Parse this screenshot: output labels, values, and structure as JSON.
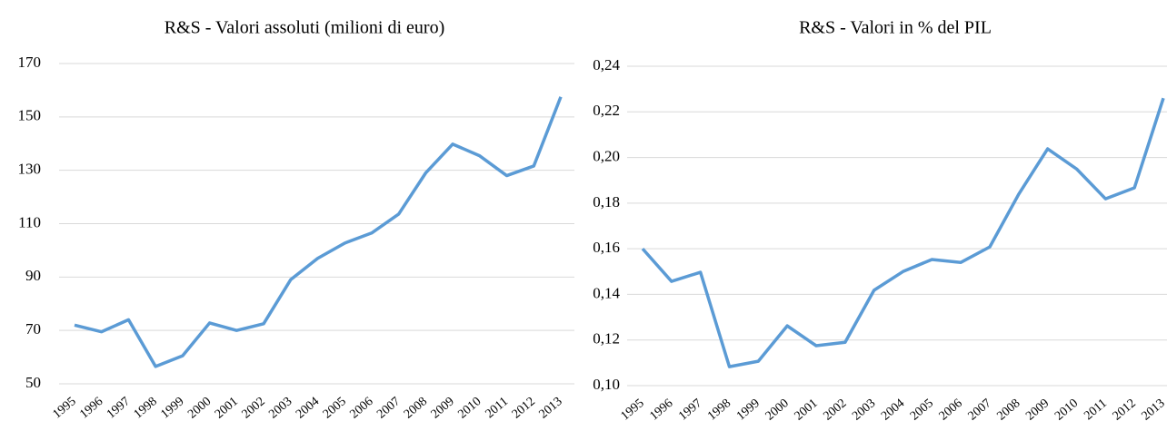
{
  "chart_data": [
    {
      "type": "line",
      "title": "R&S - Valori assoluti (milioni di euro)",
      "categories": [
        "1995",
        "1996",
        "1997",
        "1998",
        "1999",
        "2000",
        "2001",
        "2002",
        "2003",
        "2004",
        "2005",
        "2006",
        "2007",
        "2008",
        "2009",
        "2010",
        "2011",
        "2012",
        "2013"
      ],
      "series": [
        {
          "name": null,
          "color": "#5b9bd5",
          "values": [
            72,
            69.5,
            74,
            56.5,
            60.5,
            72.8,
            70,
            72.5,
            89,
            97,
            102.7,
            106.5,
            113.6,
            129,
            139.8,
            135.4,
            128,
            131.6,
            157.5
          ]
        }
      ],
      "ylim": [
        50,
        170
      ],
      "yticks": [
        50,
        70,
        90,
        110,
        130,
        150,
        170
      ],
      "grid": true
    },
    {
      "type": "line",
      "title": "R&S - Valori in % del PIL",
      "categories": [
        "1995",
        "1996",
        "1997",
        "1998",
        "1999",
        "2000",
        "2001",
        "2002",
        "2003",
        "2004",
        "2005",
        "2006",
        "2007",
        "2008",
        "2009",
        "2010",
        "2011",
        "2012",
        "2013"
      ],
      "series": [
        {
          "name": null,
          "color": "#5b9bd5",
          "values": [
            0.16,
            0.1457,
            0.1497,
            0.1083,
            0.1107,
            0.1262,
            0.1175,
            0.119,
            0.1418,
            0.15,
            0.1553,
            0.154,
            0.1608,
            0.1839,
            0.2038,
            0.195,
            0.1819,
            0.1867,
            0.226
          ]
        }
      ],
      "ylim": [
        0.1,
        0.24
      ],
      "yticks": [
        {
          "value": 0.1,
          "label": "0,10"
        },
        {
          "value": 0.12,
          "label": "0,12"
        },
        {
          "value": 0.14,
          "label": "0,14"
        },
        {
          "value": 0.16,
          "label": "0,16"
        },
        {
          "value": 0.18,
          "label": "0,18"
        },
        {
          "value": 0.2,
          "label": "0,20"
        },
        {
          "value": 0.22,
          "label": "0,22"
        },
        {
          "value": 0.24,
          "label": "0,24"
        }
      ],
      "grid": true
    }
  ]
}
